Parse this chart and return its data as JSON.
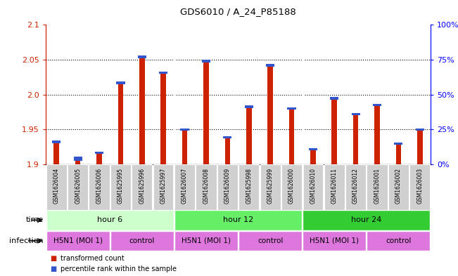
{
  "title": "GDS6010 / A_24_P85188",
  "samples": [
    "GSM1626004",
    "GSM1626005",
    "GSM1626006",
    "GSM1625995",
    "GSM1625996",
    "GSM1625997",
    "GSM1626007",
    "GSM1626008",
    "GSM1626009",
    "GSM1625998",
    "GSM1625999",
    "GSM1626000",
    "GSM1626010",
    "GSM1626011",
    "GSM1626012",
    "GSM1626001",
    "GSM1626002",
    "GSM1626003"
  ],
  "red_values": [
    1.93,
    1.905,
    1.915,
    2.015,
    2.052,
    2.03,
    1.948,
    2.046,
    1.937,
    1.98,
    2.04,
    1.978,
    1.92,
    1.993,
    1.97,
    1.983,
    1.928,
    1.948
  ],
  "blue_heights": [
    0.004,
    0.006,
    0.003,
    0.004,
    0.004,
    0.003,
    0.003,
    0.004,
    0.003,
    0.004,
    0.004,
    0.003,
    0.003,
    0.004,
    0.003,
    0.003,
    0.003,
    0.003
  ],
  "ymin": 1.9,
  "ymax": 2.1,
  "yticks": [
    1.9,
    1.95,
    2.0,
    2.05,
    2.1
  ],
  "right_ytick_positions": [
    1.9,
    1.95,
    2.0,
    2.05,
    2.1
  ],
  "right_ytick_labels": [
    "0%",
    "25%",
    "50%",
    "75%",
    "100%"
  ],
  "bar_width": 0.25,
  "red_color": "#cc2200",
  "blue_color": "#3355cc",
  "time_colors": [
    "#ccffcc",
    "#66ee66",
    "#33cc33"
  ],
  "time_groups": [
    {
      "label": "hour 6",
      "start": 0,
      "end": 5
    },
    {
      "label": "hour 12",
      "start": 6,
      "end": 11
    },
    {
      "label": "hour 24",
      "start": 12,
      "end": 17
    }
  ],
  "infection_groups": [
    {
      "label": "H5N1 (MOI 1)",
      "start": 0,
      "end": 2
    },
    {
      "label": "control",
      "start": 3,
      "end": 5
    },
    {
      "label": "H5N1 (MOI 1)",
      "start": 6,
      "end": 8
    },
    {
      "label": "control",
      "start": 9,
      "end": 11
    },
    {
      "label": "H5N1 (MOI 1)",
      "start": 12,
      "end": 14
    },
    {
      "label": "control",
      "start": 15,
      "end": 17
    }
  ],
  "infect_color": "#dd77dd",
  "time_row_label": "time",
  "infection_row_label": "infection",
  "legend_red_label": "transformed count",
  "legend_blue_label": "percentile rank within the sample"
}
